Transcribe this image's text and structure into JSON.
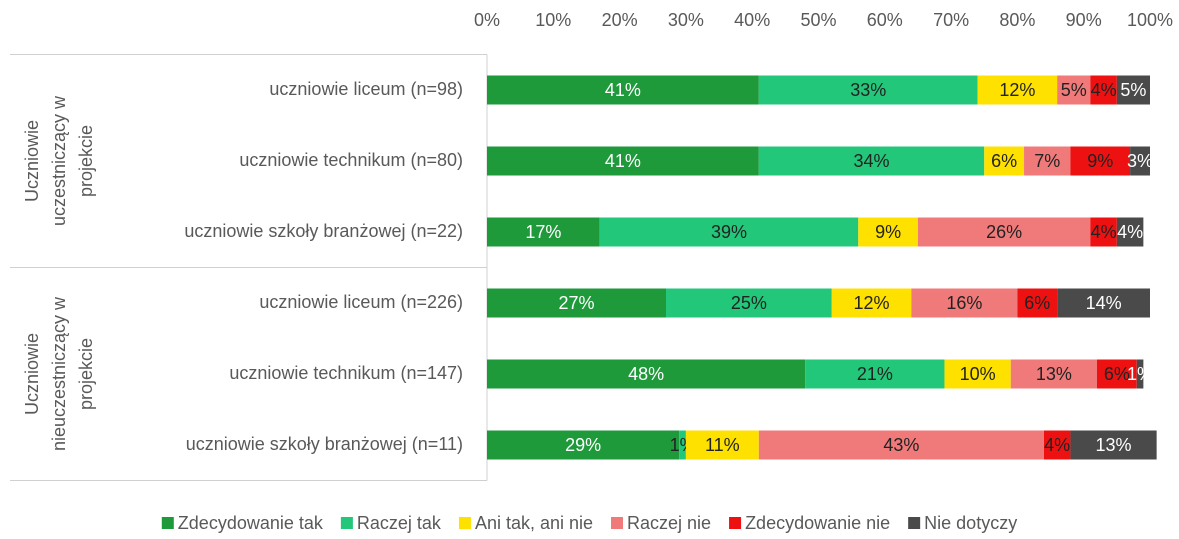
{
  "chart_data": {
    "type": "stacked_bar_horizontal",
    "categories": [
      "uczniowie liceum (n=98)",
      "uczniowie technikum (n=80)",
      "uczniowie szkoły branżowej (n=22)",
      "uczniowie liceum (n=226)",
      "uczniowie technikum (n=147)",
      "uczniowie szkoły branżowej (n=11)"
    ],
    "groups": [
      {
        "label_lines": [
          "Uczniowie",
          "uczestniczący w",
          "projekcie"
        ],
        "rows": [
          0,
          2
        ]
      },
      {
        "label_lines": [
          "Uczniowie",
          "nieuczestniczący w",
          "projekcie"
        ],
        "rows": [
          3,
          5
        ]
      }
    ],
    "xlim": [
      0,
      100
    ],
    "xticks": [
      {
        "value": 0,
        "label": "0%"
      },
      {
        "value": 10,
        "label": "10%"
      },
      {
        "value": 20,
        "label": "20%"
      },
      {
        "value": 30,
        "label": "30%"
      },
      {
        "value": 40,
        "label": "40%"
      },
      {
        "value": 50,
        "label": "50%"
      },
      {
        "value": 60,
        "label": "60%"
      },
      {
        "value": 70,
        "label": "70%"
      },
      {
        "value": 80,
        "label": "80%"
      },
      {
        "value": 90,
        "label": "90%"
      },
      {
        "value": 100,
        "label": "100%"
      }
    ],
    "legend": "bottom",
    "series": [
      {
        "name": "Zdecydowanie tak",
        "color": "#1f9a3b",
        "label_color": "#ffffff",
        "values": [
          41,
          41,
          17,
          27,
          48,
          29
        ],
        "value_labels": [
          "41%",
          "41%",
          "17%",
          "27%",
          "48%",
          "29%"
        ]
      },
      {
        "name": "Raczej tak",
        "color": "#22c77a",
        "label_color": "#222222",
        "values": [
          33,
          34,
          39,
          25,
          21,
          1
        ],
        "value_labels": [
          "33%",
          "34%",
          "39%",
          "25%",
          "21%",
          "1%"
        ]
      },
      {
        "name": "Ani tak, ani nie",
        "color": "#ffe100",
        "label_color": "#222222",
        "values": [
          12,
          6,
          9,
          12,
          10,
          11
        ],
        "value_labels": [
          "12%",
          "6%",
          "9%",
          "12%",
          "10%",
          "11%"
        ]
      },
      {
        "name": "Raczej nie",
        "color": "#f07a7a",
        "label_color": "#222222",
        "values": [
          5,
          7,
          26,
          16,
          13,
          43
        ],
        "value_labels": [
          "5%",
          "7%",
          "26%",
          "16%",
          "13%",
          "43%"
        ]
      },
      {
        "name": "Zdecydowanie nie",
        "color": "#ee1111",
        "label_color": "#222222",
        "values": [
          4,
          9,
          4,
          6,
          6,
          4
        ],
        "value_labels": [
          "4%",
          "9%",
          "4%",
          "6%",
          "6%",
          "4%"
        ]
      },
      {
        "name": "Nie dotyczy",
        "color": "#4a4a4a",
        "label_color": "#ffffff",
        "values": [
          5,
          3,
          4,
          14,
          1,
          13
        ],
        "value_labels": [
          "5%",
          "3%",
          "4%",
          "14%",
          "1%",
          "13%"
        ]
      }
    ]
  }
}
